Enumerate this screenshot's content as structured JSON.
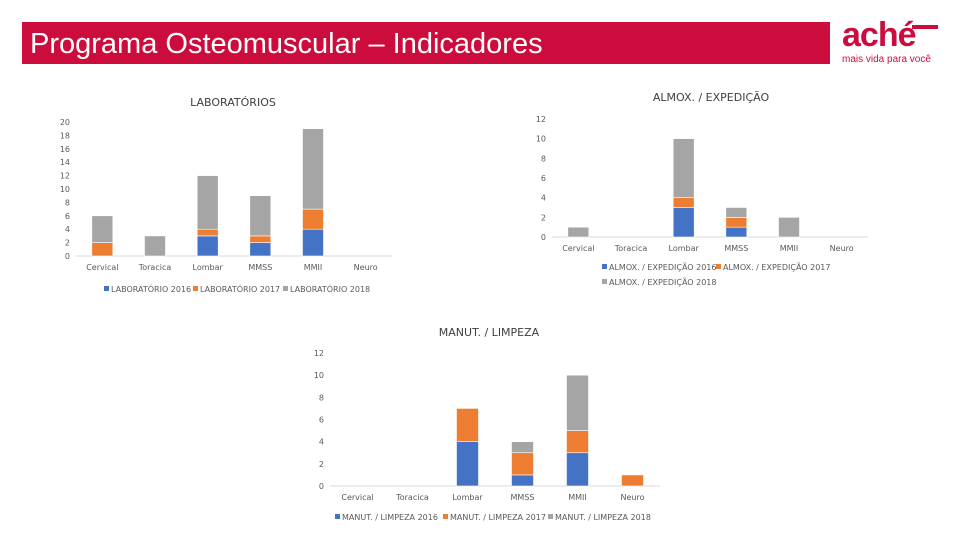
{
  "header": {
    "title": "Programa Osteomuscular – Indicadores"
  },
  "logo": {
    "word": "aché",
    "tagline": "mais vida para você"
  },
  "colors": {
    "s2016": "#4472c4",
    "s2017": "#ed7d31",
    "s2018": "#a5a5a5",
    "brand": "#cc0c3c"
  },
  "chart_data": [
    {
      "type": "bar",
      "stacked": true,
      "title": "LABORATÓRIOS",
      "categories": [
        "Cervical",
        "Toracica",
        "Lombar",
        "MMSS",
        "MMII",
        "Neuro"
      ],
      "series": [
        {
          "name": "LABORATÓRIO 2016",
          "values": [
            0,
            0,
            3,
            2,
            4,
            0
          ]
        },
        {
          "name": "LABORATÓRIO 2017",
          "values": [
            2,
            0,
            1,
            1,
            3,
            0
          ]
        },
        {
          "name": "LABORATÓRIO 2018",
          "values": [
            4,
            3,
            8,
            6,
            12,
            0
          ]
        }
      ],
      "yticks": [
        0,
        2,
        4,
        6,
        8,
        10,
        12,
        14,
        16,
        18,
        20
      ],
      "ylim": [
        0,
        20
      ]
    },
    {
      "type": "bar",
      "stacked": true,
      "title": "ALMOX. / EXPEDIÇÃO",
      "categories": [
        "Cervical",
        "Toracica",
        "Lombar",
        "MMSS",
        "MMII",
        "Neuro"
      ],
      "series": [
        {
          "name": "ALMOX. / EXPEDIÇÃO 2016",
          "values": [
            0,
            0,
            3,
            1,
            0,
            0
          ]
        },
        {
          "name": "ALMOX. / EXPEDIÇÃO 2017",
          "values": [
            0,
            0,
            1,
            1,
            0,
            0
          ]
        },
        {
          "name": "ALMOX. / EXPEDIÇÃO 2018",
          "values": [
            1,
            0,
            6,
            1,
            2,
            0
          ]
        }
      ],
      "yticks": [
        0,
        2,
        4,
        6,
        8,
        10,
        12
      ],
      "ylim": [
        0,
        12
      ]
    },
    {
      "type": "bar",
      "stacked": true,
      "title": "MANUT. / LIMPEZA",
      "categories": [
        "Cervical",
        "Toracica",
        "Lombar",
        "MMSS",
        "MMII",
        "Neuro"
      ],
      "series": [
        {
          "name": "MANUT. / LIMPEZA 2016",
          "values": [
            0,
            0,
            4,
            1,
            3,
            0
          ]
        },
        {
          "name": "MANUT. / LIMPEZA 2017",
          "values": [
            0,
            0,
            3,
            2,
            2,
            1
          ]
        },
        {
          "name": "MANUT. / LIMPEZA 2018",
          "values": [
            0,
            0,
            0,
            1,
            5,
            0
          ]
        }
      ],
      "yticks": [
        0,
        2,
        4,
        6,
        8,
        10,
        12
      ],
      "ylim": [
        0,
        12
      ]
    }
  ]
}
